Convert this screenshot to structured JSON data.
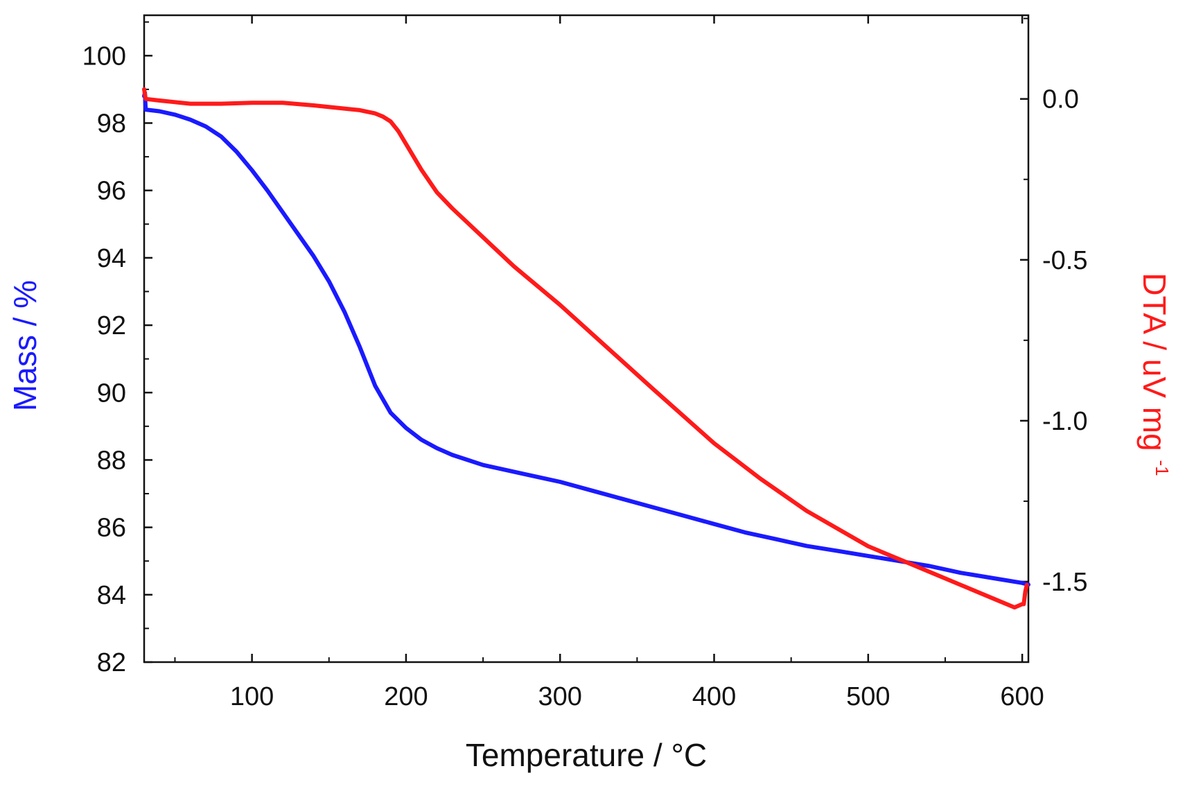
{
  "chart_data": {
    "type": "line",
    "title": "",
    "xlabel": "Temperature / °C",
    "ylabel_left": "Mass / %",
    "ylabel_right": "DTA / uV mg",
    "ylabel_right_sup": "-1",
    "xlim": [
      30,
      604
    ],
    "ylim_left": [
      82,
      101.2
    ],
    "ylim_right": [
      -1.75,
      0.26
    ],
    "x_ticks": [
      100,
      200,
      300,
      400,
      500,
      600
    ],
    "y_left_ticks": [
      82,
      84,
      86,
      88,
      90,
      92,
      94,
      96,
      98,
      100
    ],
    "y_right_ticks": [
      "0.0",
      "-0.5",
      "-1.0",
      "-1.5"
    ],
    "grid": false,
    "colors": {
      "mass": "#1a1aff",
      "dta": "#ff1a1a",
      "text": "#111111",
      "axis": "#111111"
    },
    "series": [
      {
        "name": "Mass",
        "axis": "left",
        "color": "#1a1aff",
        "x": [
          30,
          30.5,
          31,
          40,
          50,
          60,
          70,
          80,
          90,
          100,
          110,
          120,
          130,
          140,
          150,
          160,
          170,
          180,
          190,
          200,
          210,
          220,
          230,
          240,
          250,
          260,
          270,
          280,
          290,
          300,
          320,
          340,
          360,
          380,
          400,
          420,
          440,
          460,
          480,
          500,
          520,
          540,
          560,
          580,
          600,
          604
        ],
        "values": [
          98.8,
          98.9,
          98.4,
          98.35,
          98.25,
          98.1,
          97.9,
          97.6,
          97.15,
          96.6,
          96.0,
          95.35,
          94.7,
          94.05,
          93.3,
          92.4,
          91.35,
          90.2,
          89.4,
          88.95,
          88.6,
          88.35,
          88.15,
          88.0,
          87.85,
          87.75,
          87.65,
          87.55,
          87.45,
          87.35,
          87.1,
          86.85,
          86.6,
          86.35,
          86.1,
          85.85,
          85.65,
          85.45,
          85.3,
          85.15,
          85.0,
          84.85,
          84.65,
          84.5,
          84.35,
          84.3
        ]
      },
      {
        "name": "DTA",
        "axis": "right",
        "color": "#ff1a1a",
        "x": [
          30,
          30.5,
          31,
          40,
          50,
          60,
          70,
          80,
          100,
          120,
          140,
          160,
          170,
          180,
          185,
          190,
          195,
          200,
          210,
          220,
          230,
          250,
          270,
          300,
          330,
          360,
          400,
          430,
          460,
          500,
          530,
          560,
          580,
          595,
          600,
          601,
          602,
          603
        ],
        "values": [
          0.03,
          0.015,
          0.0,
          -0.005,
          -0.01,
          -0.015,
          -0.015,
          -0.015,
          -0.012,
          -0.012,
          -0.02,
          -0.03,
          -0.035,
          -0.045,
          -0.055,
          -0.07,
          -0.1,
          -0.14,
          -0.22,
          -0.29,
          -0.34,
          -0.43,
          -0.52,
          -0.64,
          -0.77,
          -0.9,
          -1.07,
          -1.18,
          -1.28,
          -1.39,
          -1.45,
          -1.51,
          -1.55,
          -1.58,
          -1.57,
          -1.57,
          -1.53,
          -1.51
        ]
      }
    ]
  }
}
